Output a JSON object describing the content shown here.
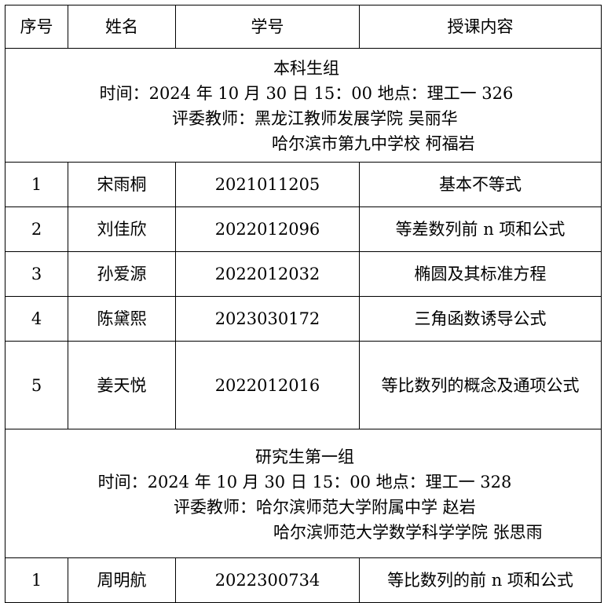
{
  "headers": [
    "序号",
    "姓名",
    "学号",
    "授课内容"
  ],
  "groups": [
    {
      "title": "本科生组",
      "time_line": "时间：2024 年 10 月 30 日 15：00   地点：理工一 326",
      "judges_line1": "评委教师：黑龙江教师发展学院 吴丽华",
      "judges_line2": "哈尔滨市第九中学校 柯福岩",
      "rows": [
        {
          "no": "1",
          "name": "宋雨桐",
          "id": "2021011205",
          "topic": "基本不等式"
        },
        {
          "no": "2",
          "name": "刘佳欣",
          "id": "2022012096",
          "topic": "等差数列前 n 项和公式"
        },
        {
          "no": "3",
          "name": "孙爱源",
          "id": "2022012032",
          "topic": "椭圆及其标准方程"
        },
        {
          "no": "4",
          "name": "陈黛熙",
          "id": "2023030172",
          "topic": "三角函数诱导公式"
        },
        {
          "no": "5",
          "name": "姜天悦",
          "id": "2022012016",
          "topic": "等比数列的概念及通项公式"
        }
      ]
    },
    {
      "title": "研究生第一组",
      "time_line": "时间：2024 年 10 月 30 日 15：00   地点：理工一 328",
      "judges_line1": "评委教师：哈尔滨师范大学附属中学 赵岩",
      "judges_line2": "哈尔滨师范大学数学科学学院 张思雨",
      "rows": [
        {
          "no": "1",
          "name": "周明航",
          "id": "2022300734",
          "topic": "等比数列的前 n 项和公式"
        }
      ]
    }
  ]
}
